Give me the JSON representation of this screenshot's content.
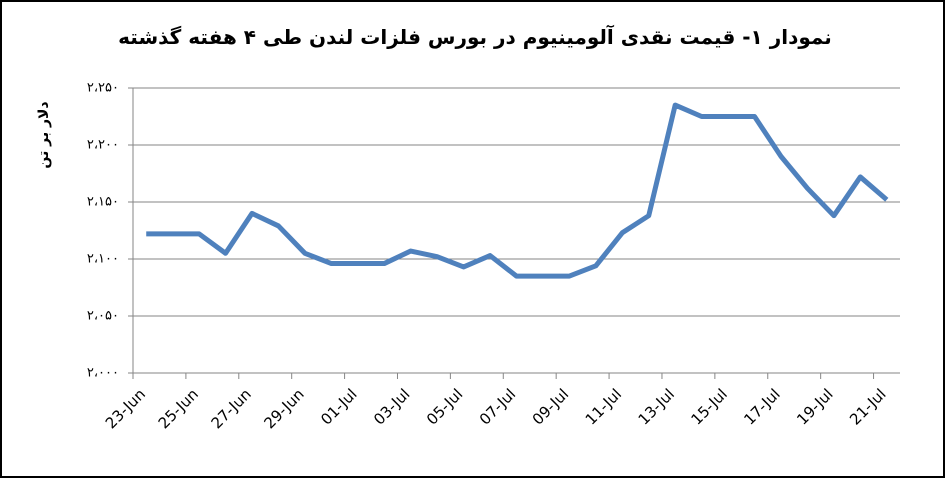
{
  "chart_data": {
    "type": "line",
    "title": "نمودار ۱- قیمت نقدی آلومینیوم در بورس فلزات لندن طی ۴ هفته گذشته",
    "y_label": "دلار بر تن",
    "categories": [
      "23-Jun",
      null,
      "25-Jun",
      null,
      "27-Jun",
      null,
      "29-Jun",
      null,
      "01-Jul",
      null,
      "03-Jul",
      null,
      "05-Jul",
      null,
      "07-Jul",
      null,
      "09-Jul",
      null,
      "11-Jul",
      null,
      "13-Jul",
      null,
      "15-Jul",
      null,
      "17-Jul",
      null,
      "19-Jul",
      null,
      "21-Jul"
    ],
    "series": [
      {
        "color": "#4f81bd",
        "values": [
          2122,
          2122,
          2122,
          2105,
          2140,
          2129,
          2105,
          2096,
          2096,
          2096,
          2107,
          2102,
          2093,
          2103,
          2085,
          2085,
          2085,
          2094,
          2123,
          2138,
          2235,
          2225,
          2225,
          2225,
          2190,
          2162,
          2138,
          2172,
          2152
        ]
      }
    ],
    "ylim": [
      2000,
      2250
    ],
    "yticks": [
      {
        "value": 2000,
        "label": "۲،۰۰۰"
      },
      {
        "value": 2050,
        "label": "۲،۰۵۰"
      },
      {
        "value": 2100,
        "label": "۲،۱۰۰"
      },
      {
        "value": 2150,
        "label": "۲،۱۵۰"
      },
      {
        "value": 2200,
        "label": "۲،۲۰۰"
      },
      {
        "value": 2250,
        "label": "۲،۲۵۰"
      }
    ],
    "grid": true
  }
}
